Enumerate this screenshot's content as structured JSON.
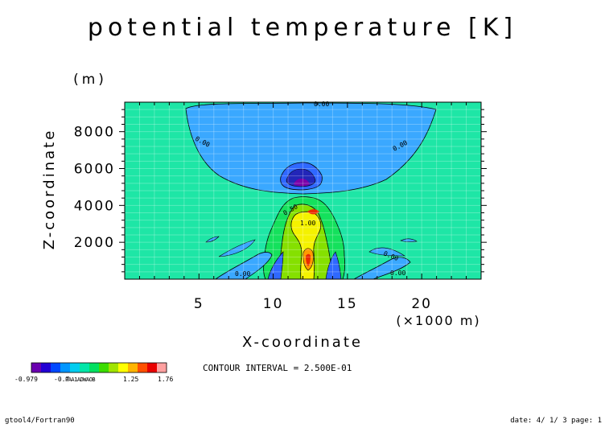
{
  "chart_data": {
    "type": "contour",
    "title": "potential temperature [K]",
    "xlabel": "X-coordinate",
    "xunit": "(×1000 m)",
    "ylabel": "Z-coordinate",
    "yunit": "(m)",
    "xlim": [
      0,
      24
    ],
    "ylim": [
      0,
      9600
    ],
    "xticks": [
      5,
      10,
      15,
      20
    ],
    "yticks": [
      2000,
      4000,
      6000,
      8000
    ],
    "contour_labels": [
      "0.00",
      "0.00",
      "0.00",
      "0.50",
      "1.00",
      "0.00",
      "0.00",
      "0.00"
    ],
    "contour_interval": "CONTOUR INTERVAL = 2.500E-01",
    "colorbar": {
      "colors": [
        "#6a00b0",
        "#2200d4",
        "#0048ff",
        "#0096ff",
        "#00cdf0",
        "#00e6a8",
        "#00e060",
        "#3cdc00",
        "#a0e400",
        "#ffff00",
        "#ffb400",
        "#ff5000",
        "#e80000",
        "#ffa0a0"
      ],
      "labels": [
        "-0.979",
        "-0.751",
        "-0.524",
        "-0.296",
        "-0.068",
        "0.159",
        "1.25",
        "1.76"
      ],
      "label_rows": [
        [
          "-0.979",
          "-0.7",
          "1.25",
          "1.76"
        ],
        [
          "0.0",
          "-0.45",
          "-0.49",
          "0.50",
          "0.55",
          "-0.55",
          "0.55"
        ]
      ]
    },
    "field_colors": {
      "background": "#1ee6a6",
      "negative_light": "#3aa8ff",
      "negative_mid": "#2f68ff",
      "negative_dark": "#2226b8",
      "negative_min": "#7a00a8",
      "positive_1": "#14e15c",
      "positive_2": "#85e000",
      "positive_3": "#f4f200",
      "positive_4": "#ff9b00",
      "positive_max": "#e82b00"
    }
  },
  "footer": {
    "left": "gtool4/Fortran90",
    "right": "date: 4/ 1/ 3 page: 1"
  }
}
